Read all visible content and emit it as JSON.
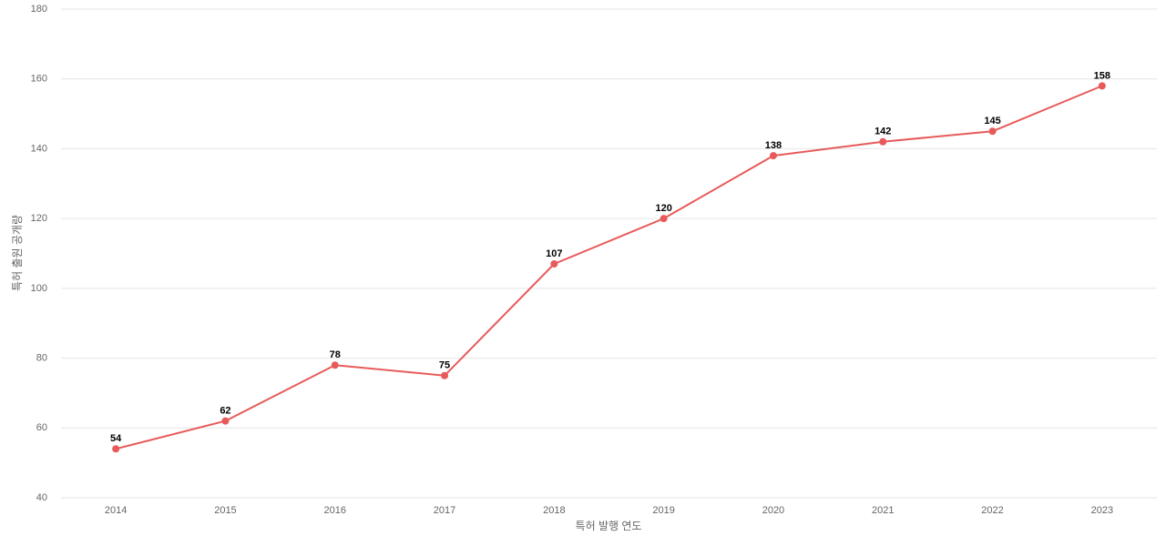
{
  "chart_data": {
    "type": "line",
    "x_label": "특허 발행 연도",
    "y_label": "특허 출원 공개량",
    "categories": [
      "2014",
      "2015",
      "2016",
      "2017",
      "2018",
      "2019",
      "2020",
      "2021",
      "2022",
      "2023"
    ],
    "series": [
      {
        "name": "특허 출원 공개량",
        "color": "#e85a5a",
        "values": [
          54,
          62,
          78,
          75,
          107,
          120,
          138,
          142,
          145,
          158
        ]
      }
    ],
    "ylim": [
      40,
      180
    ],
    "yticks": [
      40,
      60,
      80,
      100,
      120,
      140,
      160,
      180
    ],
    "grid": true
  }
}
